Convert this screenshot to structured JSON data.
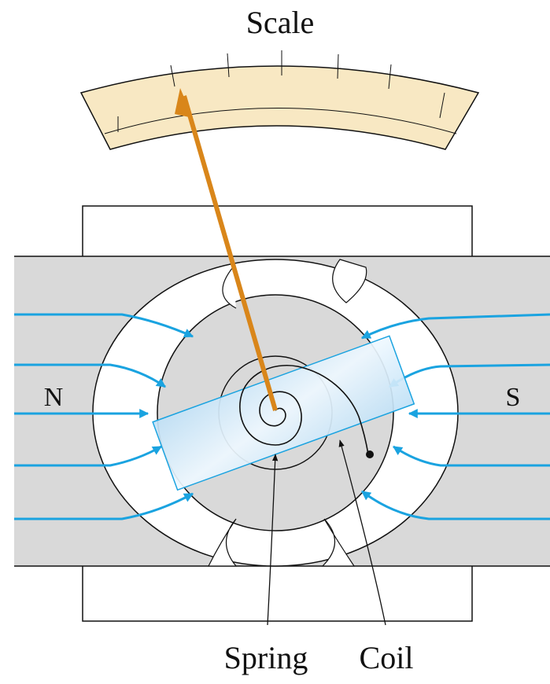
{
  "labels": {
    "scale": "Scale",
    "north": "N",
    "south": "S",
    "spring": "Spring",
    "coil": "Coil"
  },
  "colors": {
    "magnet_gray": "#d9d9d9",
    "field_line": "#1aa3e0",
    "pointer": "#d9861a",
    "scale_fill": "#f8e8c3",
    "coil_fill": "#cfe8f8",
    "outline": "#111111"
  },
  "icons": {
    "field_arrow": "arrowhead-icon",
    "pointer_tip": "arrowhead-icon"
  }
}
